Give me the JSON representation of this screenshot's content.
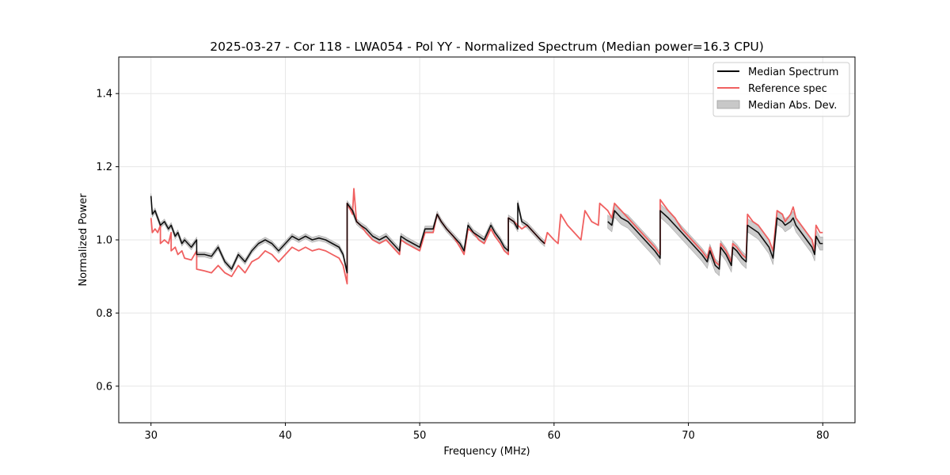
{
  "chart_data": {
    "type": "line",
    "title": "2025-03-27 - Cor 118 - LWA054 - Pol YY - Normalized Spectrum (Median power=16.3 CPU)",
    "xlabel": "Frequency (MHz)",
    "ylabel": "Normalized Power",
    "xlim": [
      27.6,
      82.4
    ],
    "ylim": [
      0.5,
      1.5
    ],
    "xticks": [
      30,
      40,
      50,
      60,
      70,
      80
    ],
    "yticks": [
      0.6,
      0.8,
      1.0,
      1.2,
      1.4
    ],
    "xtick_labels": [
      "30",
      "40",
      "50",
      "60",
      "70",
      "80"
    ],
    "ytick_labels": [
      "0.6",
      "0.8",
      "1.0",
      "1.2",
      "1.4"
    ],
    "grid": true,
    "legend_position": "top-right",
    "legend": {
      "median": "Median Spectrum",
      "reference": "Reference spec",
      "mad": "Median Abs. Dev."
    },
    "colors": {
      "median": "#000000",
      "reference": "#f06060",
      "mad": "#c8c8c8",
      "grid": "#e6e6e6"
    },
    "series": [
      {
        "name": "Median Spectrum",
        "segments": [
          [
            [
              30.0,
              1.12
            ],
            [
              30.1,
              1.07
            ],
            [
              30.3,
              1.08
            ],
            [
              30.5,
              1.06
            ],
            [
              30.7,
              1.04
            ],
            [
              31.0,
              1.05
            ],
            [
              31.3,
              1.03
            ],
            [
              31.5,
              1.04
            ],
            [
              31.8,
              1.01
            ],
            [
              32.0,
              1.02
            ],
            [
              32.3,
              0.99
            ],
            [
              32.5,
              1.0
            ],
            [
              33.0,
              0.98
            ],
            [
              33.4,
              1.0
            ],
            [
              33.4,
              0.96
            ],
            [
              34.0,
              0.96
            ],
            [
              34.5,
              0.955
            ],
            [
              35.0,
              0.98
            ],
            [
              35.5,
              0.94
            ],
            [
              36.0,
              0.92
            ],
            [
              36.5,
              0.96
            ],
            [
              37.0,
              0.94
            ],
            [
              37.5,
              0.97
            ],
            [
              38.0,
              0.99
            ],
            [
              38.5,
              1.0
            ],
            [
              39.0,
              0.99
            ],
            [
              39.5,
              0.97
            ],
            [
              40.0,
              0.99
            ],
            [
              40.5,
              1.01
            ],
            [
              41.0,
              1.0
            ],
            [
              41.5,
              1.01
            ],
            [
              42.0,
              1.0
            ],
            [
              42.5,
              1.005
            ],
            [
              43.0,
              1.0
            ],
            [
              43.5,
              0.99
            ],
            [
              44.0,
              0.98
            ],
            [
              44.3,
              0.96
            ],
            [
              44.6,
              0.91
            ],
            [
              44.6,
              1.1
            ],
            [
              45.0,
              1.08
            ],
            [
              45.3,
              1.05
            ],
            [
              45.6,
              1.04
            ],
            [
              46.0,
              1.03
            ],
            [
              46.5,
              1.01
            ],
            [
              47.0,
              1.0
            ],
            [
              47.5,
              1.01
            ],
            [
              48.0,
              0.99
            ],
            [
              48.5,
              0.97
            ],
            [
              48.6,
              1.01
            ],
            [
              49.0,
              1.0
            ],
            [
              49.5,
              0.99
            ],
            [
              50.0,
              0.98
            ],
            [
              50.4,
              1.03
            ],
            [
              51.0,
              1.03
            ],
            [
              51.3,
              1.07
            ],
            [
              51.6,
              1.05
            ],
            [
              52.0,
              1.03
            ],
            [
              52.5,
              1.01
            ],
            [
              53.0,
              0.99
            ],
            [
              53.3,
              0.97
            ],
            [
              53.6,
              1.04
            ],
            [
              54.0,
              1.02
            ],
            [
              54.4,
              1.01
            ],
            [
              54.8,
              1.0
            ],
            [
              55.3,
              1.04
            ],
            [
              55.6,
              1.02
            ],
            [
              56.0,
              1.0
            ],
            [
              56.3,
              0.98
            ],
            [
              56.6,
              0.97
            ],
            [
              56.6,
              1.06
            ],
            [
              57.0,
              1.05
            ],
            [
              57.3,
              1.03
            ],
            [
              57.3,
              1.1
            ],
            [
              57.6,
              1.05
            ],
            [
              58.0,
              1.04
            ],
            [
              58.5,
              1.02
            ],
            [
              59.0,
              1.0
            ],
            [
              59.3,
              0.99
            ]
          ],
          [
            [
              64.0,
              1.05
            ],
            [
              64.3,
              1.04
            ],
            [
              64.5,
              1.08
            ],
            [
              65.0,
              1.06
            ],
            [
              65.5,
              1.05
            ],
            [
              66.0,
              1.03
            ],
            [
              66.5,
              1.01
            ],
            [
              67.0,
              0.99
            ],
            [
              67.5,
              0.97
            ],
            [
              67.9,
              0.95
            ],
            [
              67.9,
              1.08
            ],
            [
              68.5,
              1.06
            ],
            [
              69.0,
              1.04
            ],
            [
              69.5,
              1.02
            ],
            [
              70.0,
              1.0
            ],
            [
              70.5,
              0.98
            ],
            [
              71.0,
              0.96
            ],
            [
              71.4,
              0.94
            ],
            [
              71.6,
              0.97
            ],
            [
              72.0,
              0.93
            ],
            [
              72.3,
              0.92
            ],
            [
              72.4,
              0.98
            ],
            [
              72.8,
              0.96
            ],
            [
              73.2,
              0.93
            ],
            [
              73.3,
              0.98
            ],
            [
              73.6,
              0.97
            ],
            [
              74.0,
              0.95
            ],
            [
              74.3,
              0.94
            ],
            [
              74.4,
              1.04
            ],
            [
              74.8,
              1.03
            ],
            [
              75.2,
              1.02
            ],
            [
              75.6,
              1.0
            ],
            [
              76.0,
              0.98
            ],
            [
              76.3,
              0.95
            ],
            [
              76.6,
              1.06
            ],
            [
              77.0,
              1.05
            ],
            [
              77.2,
              1.04
            ],
            [
              77.6,
              1.05
            ],
            [
              77.8,
              1.06
            ],
            [
              78.0,
              1.04
            ],
            [
              78.4,
              1.02
            ],
            [
              78.8,
              1.0
            ],
            [
              79.2,
              0.98
            ],
            [
              79.4,
              0.96
            ],
            [
              79.5,
              1.01
            ],
            [
              79.8,
              0.99
            ],
            [
              80.0,
              0.99
            ]
          ]
        ]
      },
      {
        "name": "Reference spec",
        "segments": [
          [
            [
              30.0,
              1.06
            ],
            [
              30.1,
              1.02
            ],
            [
              30.3,
              1.03
            ],
            [
              30.5,
              1.02
            ],
            [
              30.7,
              1.04
            ],
            [
              30.7,
              0.99
            ],
            [
              31.0,
              1.0
            ],
            [
              31.3,
              0.99
            ],
            [
              31.5,
              1.02
            ],
            [
              31.5,
              0.97
            ],
            [
              31.8,
              0.98
            ],
            [
              32.0,
              0.96
            ],
            [
              32.3,
              0.97
            ],
            [
              32.5,
              0.95
            ],
            [
              33.0,
              0.945
            ],
            [
              33.4,
              0.97
            ],
            [
              33.4,
              0.92
            ],
            [
              34.0,
              0.915
            ],
            [
              34.5,
              0.91
            ],
            [
              35.0,
              0.93
            ],
            [
              35.5,
              0.91
            ],
            [
              36.0,
              0.9
            ],
            [
              36.5,
              0.93
            ],
            [
              37.0,
              0.91
            ],
            [
              37.5,
              0.94
            ],
            [
              38.0,
              0.95
            ],
            [
              38.5,
              0.97
            ],
            [
              39.0,
              0.96
            ],
            [
              39.5,
              0.94
            ],
            [
              40.0,
              0.96
            ],
            [
              40.5,
              0.98
            ],
            [
              41.0,
              0.97
            ],
            [
              41.5,
              0.98
            ],
            [
              42.0,
              0.97
            ],
            [
              42.5,
              0.975
            ],
            [
              43.0,
              0.97
            ],
            [
              43.5,
              0.96
            ],
            [
              44.0,
              0.95
            ],
            [
              44.3,
              0.93
            ],
            [
              44.6,
              0.88
            ],
            [
              44.6,
              1.1
            ],
            [
              45.0,
              1.07
            ],
            [
              45.1,
              1.14
            ],
            [
              45.3,
              1.05
            ],
            [
              45.6,
              1.04
            ],
            [
              46.0,
              1.02
            ],
            [
              46.5,
              1.0
            ],
            [
              47.0,
              0.99
            ],
            [
              47.5,
              1.0
            ],
            [
              48.0,
              0.98
            ],
            [
              48.5,
              0.96
            ],
            [
              48.6,
              1.0
            ],
            [
              49.0,
              0.99
            ],
            [
              49.5,
              0.98
            ],
            [
              50.0,
              0.97
            ],
            [
              50.4,
              1.02
            ],
            [
              51.0,
              1.02
            ],
            [
              51.3,
              1.07
            ],
            [
              51.6,
              1.05
            ],
            [
              52.0,
              1.03
            ],
            [
              52.5,
              1.01
            ],
            [
              53.0,
              0.98
            ],
            [
              53.3,
              0.96
            ],
            [
              53.6,
              1.03
            ],
            [
              54.0,
              1.02
            ],
            [
              54.4,
              1.0
            ],
            [
              54.8,
              0.99
            ],
            [
              55.3,
              1.03
            ],
            [
              55.6,
              1.01
            ],
            [
              56.0,
              0.99
            ],
            [
              56.3,
              0.97
            ],
            [
              56.6,
              0.96
            ],
            [
              56.6,
              1.06
            ],
            [
              57.0,
              1.05
            ],
            [
              57.3,
              1.04
            ],
            [
              57.6,
              1.03
            ],
            [
              58.0,
              1.04
            ],
            [
              58.5,
              1.02
            ],
            [
              59.0,
              1.0
            ],
            [
              59.3,
              0.99
            ],
            [
              59.5,
              1.02
            ],
            [
              60.0,
              1.0
            ],
            [
              60.3,
              0.99
            ],
            [
              60.5,
              1.07
            ],
            [
              61.0,
              1.04
            ],
            [
              61.5,
              1.02
            ],
            [
              62.0,
              1.0
            ],
            [
              62.3,
              1.08
            ],
            [
              62.8,
              1.05
            ],
            [
              63.3,
              1.04
            ],
            [
              63.4,
              1.1
            ],
            [
              64.0,
              1.08
            ],
            [
              64.3,
              1.06
            ],
            [
              64.5,
              1.1
            ],
            [
              65.0,
              1.08
            ],
            [
              65.5,
              1.06
            ],
            [
              66.0,
              1.04
            ],
            [
              66.5,
              1.02
            ],
            [
              67.0,
              1.0
            ],
            [
              67.5,
              0.98
            ],
            [
              67.9,
              0.96
            ],
            [
              67.9,
              1.11
            ],
            [
              68.5,
              1.08
            ],
            [
              69.0,
              1.06
            ],
            [
              69.5,
              1.03
            ],
            [
              70.0,
              1.01
            ],
            [
              70.5,
              0.99
            ],
            [
              71.0,
              0.97
            ],
            [
              71.4,
              0.95
            ],
            [
              71.6,
              0.98
            ],
            [
              72.0,
              0.94
            ],
            [
              72.3,
              0.93
            ],
            [
              72.4,
              0.99
            ],
            [
              72.8,
              0.97
            ],
            [
              73.2,
              0.94
            ],
            [
              73.3,
              0.99
            ],
            [
              73.6,
              0.98
            ],
            [
              74.0,
              0.96
            ],
            [
              74.3,
              0.95
            ],
            [
              74.4,
              1.07
            ],
            [
              74.8,
              1.05
            ],
            [
              75.2,
              1.04
            ],
            [
              75.6,
              1.02
            ],
            [
              76.0,
              1.0
            ],
            [
              76.3,
              0.97
            ],
            [
              76.6,
              1.08
            ],
            [
              77.0,
              1.07
            ],
            [
              77.2,
              1.05
            ],
            [
              77.6,
              1.07
            ],
            [
              77.8,
              1.09
            ],
            [
              78.0,
              1.06
            ],
            [
              78.4,
              1.04
            ],
            [
              78.8,
              1.02
            ],
            [
              79.2,
              1.0
            ],
            [
              79.4,
              0.97
            ],
            [
              79.5,
              1.04
            ],
            [
              79.8,
              1.02
            ],
            [
              80.0,
              1.02
            ]
          ]
        ]
      }
    ],
    "mad_widths": [
      {
        "x_range": [
          30.0,
          44.6
        ],
        "half_width": 0.007
      },
      {
        "x_range": [
          44.6,
          59.3
        ],
        "half_width": 0.008
      },
      {
        "x_range": [
          64.0,
          80.0
        ],
        "half_width": 0.018
      }
    ]
  }
}
